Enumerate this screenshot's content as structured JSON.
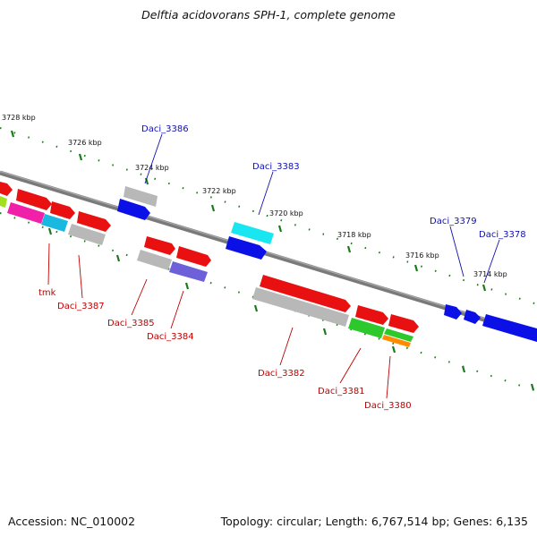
{
  "title": "Delftia acidovorans SPH-1, complete genome",
  "accession": "Accession: NC_010002",
  "topology": "Topology: circular; Length: 6,767,514 bp; Genes: 6,135",
  "colors": {
    "red": "#e81010",
    "blue": "#0a10e6",
    "cyan": "#18e6f0",
    "gray": "#b8b8b8",
    "magenta": "#f020a8",
    "green": "#2cc82c",
    "purple": "#6e60d8",
    "orange": "#ff8c00",
    "lime": "#a0e020",
    "tick": "#1a7a1a"
  },
  "scale_labels": [
    "3728 kbp",
    "3726 kbp",
    "3724 kbp",
    "3722 kbp",
    "3720 kbp",
    "3718 kbp",
    "3716 kbp",
    "3714 kbp"
  ],
  "genes_top": [
    "Daci_3386",
    "Daci_3383",
    "Daci_3379",
    "Daci_3378"
  ],
  "genes_bottom": [
    "tmk",
    "Daci_3387",
    "Daci_3385",
    "Daci_3384",
    "Daci_3382",
    "Daci_3381",
    "Daci_3380"
  ]
}
